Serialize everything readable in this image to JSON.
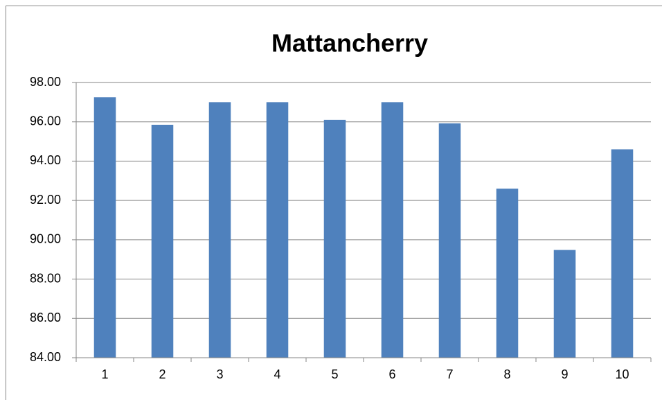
{
  "chart_data": {
    "type": "bar",
    "title": "Mattancherry",
    "categories": [
      "1",
      "2",
      "3",
      "4",
      "5",
      "6",
      "7",
      "8",
      "9",
      "10"
    ],
    "values": [
      97.25,
      95.85,
      97.0,
      97.0,
      96.1,
      97.0,
      95.92,
      92.6,
      89.48,
      94.6
    ],
    "color": "#4f81bd",
    "ylim": [
      84,
      98
    ],
    "yticks": [
      {
        "value": 84,
        "label": "84.00"
      },
      {
        "value": 86,
        "label": "86.00"
      },
      {
        "value": 88,
        "label": "88.00"
      },
      {
        "value": 90,
        "label": "90.00"
      },
      {
        "value": 92,
        "label": "92.00"
      },
      {
        "value": 94,
        "label": "94.00"
      },
      {
        "value": 96,
        "label": "96.00"
      },
      {
        "value": 98,
        "label": "98.00"
      }
    ],
    "grid": true
  }
}
